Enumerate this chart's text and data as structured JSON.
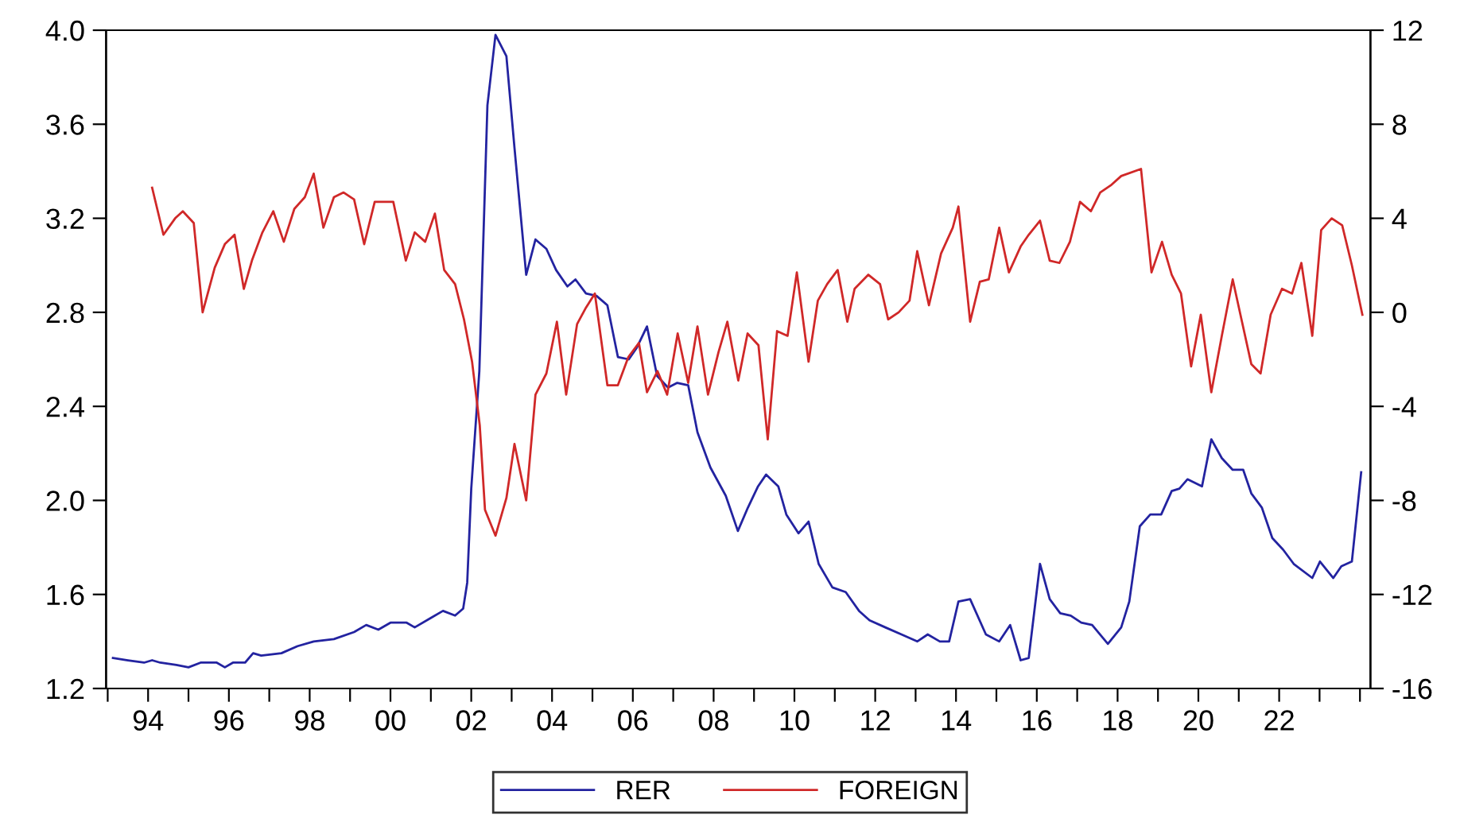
{
  "chart_data": {
    "type": "line",
    "series": [
      {
        "name": "RER",
        "color": "#2323a0",
        "x": [
          1993.13,
          1993.5,
          1993.9,
          1994.1,
          1994.3,
          1994.7,
          1995.0,
          1995.3,
          1995.7,
          1995.9,
          1996.1,
          1996.4,
          1996.6,
          1996.8,
          1997.3,
          1997.7,
          1998.1,
          1998.6,
          1999.1,
          1999.4,
          1999.7,
          2000.0,
          2000.4,
          2000.6,
          2001.0,
          2001.3,
          2001.6,
          2001.8,
          2001.9,
          2002.0,
          2002.2,
          2002.4,
          2002.6,
          2002.87,
          2003.07,
          2003.36,
          2003.59,
          2003.86,
          2004.1,
          2004.38,
          2004.58,
          2004.84,
          2005.1,
          2005.37,
          2005.63,
          2005.9,
          2006.1,
          2006.35,
          2006.6,
          2006.87,
          2007.1,
          2007.37,
          2007.6,
          2007.92,
          2008.3,
          2008.6,
          2008.85,
          2009.1,
          2009.3,
          2009.6,
          2009.8,
          2010.1,
          2010.35,
          2010.6,
          2010.94,
          2011.27,
          2011.6,
          2011.86,
          2012.25,
          2012.65,
          2013.04,
          2013.3,
          2013.6,
          2013.83,
          2014.06,
          2014.35,
          2014.74,
          2015.07,
          2015.34,
          2015.6,
          2015.8,
          2016.08,
          2016.32,
          2016.58,
          2016.84,
          2017.1,
          2017.37,
          2017.76,
          2018.09,
          2018.29,
          2018.55,
          2018.81,
          2019.08,
          2019.34,
          2019.53,
          2019.73,
          2020.09,
          2020.32,
          2020.58,
          2020.85,
          2021.11,
          2021.31,
          2021.57,
          2021.83,
          2022.1,
          2022.36,
          2022.82,
          2023.01,
          2023.34,
          2023.54,
          2023.8,
          2024.03
        ],
        "values": [
          1.33,
          1.32,
          1.31,
          1.32,
          1.31,
          1.3,
          1.29,
          1.31,
          1.31,
          1.29,
          1.31,
          1.31,
          1.35,
          1.34,
          1.35,
          1.38,
          1.4,
          1.41,
          1.44,
          1.47,
          1.45,
          1.48,
          1.48,
          1.46,
          1.5,
          1.53,
          1.51,
          1.54,
          1.65,
          2.05,
          2.55,
          3.68,
          3.98,
          3.89,
          3.5,
          2.96,
          3.11,
          3.07,
          2.98,
          2.91,
          2.94,
          2.88,
          2.87,
          2.83,
          2.61,
          2.6,
          2.65,
          2.74,
          2.53,
          2.48,
          2.5,
          2.49,
          2.29,
          2.14,
          2.02,
          1.87,
          1.97,
          2.06,
          2.11,
          2.06,
          1.94,
          1.86,
          1.91,
          1.73,
          1.63,
          1.61,
          1.53,
          1.49,
          1.46,
          1.43,
          1.4,
          1.43,
          1.4,
          1.4,
          1.57,
          1.58,
          1.43,
          1.4,
          1.47,
          1.32,
          1.33,
          1.73,
          1.58,
          1.52,
          1.51,
          1.48,
          1.47,
          1.39,
          1.46,
          1.57,
          1.89,
          1.94,
          1.94,
          2.04,
          2.05,
          2.09,
          2.06,
          2.26,
          2.18,
          2.13,
          2.13,
          2.03,
          1.97,
          1.84,
          1.79,
          1.73,
          1.67,
          1.74,
          1.67,
          1.72,
          1.74,
          2.12
        ]
      },
      {
        "name": "FOREIGN",
        "color": "#d02828",
        "axis": "y2",
        "x": [
          1994.1,
          1994.38,
          1994.67,
          1994.86,
          1995.13,
          1995.35,
          1995.65,
          1995.9,
          1996.14,
          1996.37,
          1996.57,
          1996.83,
          1997.1,
          1997.36,
          1997.62,
          1997.88,
          1998.1,
          1998.34,
          1998.6,
          1998.84,
          1999.1,
          1999.35,
          1999.61,
          1999.85,
          2000.07,
          2000.38,
          2000.6,
          2000.86,
          2001.1,
          2001.33,
          2001.6,
          2001.82,
          2002.02,
          2002.21,
          2002.34,
          2002.6,
          2002.87,
          2003.07,
          2003.36,
          2003.59,
          2003.86,
          2004.12,
          2004.35,
          2004.62,
          2004.84,
          2005.06,
          2005.37,
          2005.63,
          2005.89,
          2006.15,
          2006.35,
          2006.61,
          2006.85,
          2007.11,
          2007.37,
          2007.6,
          2007.86,
          2008.12,
          2008.34,
          2008.61,
          2008.84,
          2009.11,
          2009.34,
          2009.57,
          2009.83,
          2010.06,
          2010.35,
          2010.58,
          2010.81,
          2011.07,
          2011.31,
          2011.49,
          2011.83,
          2012.12,
          2012.32,
          2012.58,
          2012.85,
          2013.04,
          2013.33,
          2013.63,
          2013.92,
          2014.06,
          2014.35,
          2014.59,
          2014.81,
          2015.07,
          2015.31,
          2015.6,
          2015.8,
          2016.08,
          2016.32,
          2016.56,
          2016.82,
          2017.07,
          2017.34,
          2017.57,
          2017.83,
          2018.09,
          2018.58,
          2018.84,
          2019.1,
          2019.34,
          2019.57,
          2019.82,
          2020.06,
          2020.32,
          2020.58,
          2020.85,
          2021.08,
          2021.31,
          2021.54,
          2021.79,
          2022.07,
          2022.32,
          2022.55,
          2022.82,
          2023.04,
          2023.3,
          2023.56,
          2023.8,
          2024.06
        ],
        "values": [
          5.3,
          3.3,
          4.0,
          4.3,
          3.8,
          0.0,
          1.9,
          2.9,
          3.3,
          1.0,
          2.2,
          3.4,
          4.3,
          3.0,
          4.4,
          4.9,
          5.9,
          3.6,
          4.9,
          5.1,
          4.8,
          2.9,
          4.7,
          4.7,
          4.7,
          2.2,
          3.4,
          3.0,
          4.2,
          1.8,
          1.2,
          -0.3,
          -2.1,
          -4.8,
          -8.4,
          -9.5,
          -7.9,
          -5.6,
          -8.0,
          -3.5,
          -2.6,
          -0.4,
          -3.5,
          -0.5,
          0.2,
          0.8,
          -3.1,
          -3.1,
          -1.9,
          -1.3,
          -3.4,
          -2.5,
          -3.5,
          -0.9,
          -3.0,
          -0.6,
          -3.5,
          -1.7,
          -0.4,
          -2.9,
          -0.9,
          -1.4,
          -5.4,
          -0.8,
          -1.0,
          1.7,
          -2.1,
          0.5,
          1.2,
          1.8,
          -0.4,
          1.0,
          1.6,
          1.2,
          -0.3,
          0.0,
          0.5,
          2.6,
          0.3,
          2.5,
          3.6,
          4.5,
          -0.4,
          1.3,
          1.4,
          3.6,
          1.7,
          2.8,
          3.3,
          3.9,
          2.2,
          2.1,
          3.0,
          4.7,
          4.3,
          5.1,
          5.4,
          5.8,
          6.1,
          1.7,
          3.0,
          1.6,
          0.8,
          -2.3,
          -0.1,
          -3.4,
          -1.0,
          1.4,
          -0.4,
          -2.2,
          -2.6,
          -0.1,
          1.0,
          0.8,
          2.1,
          -1.0,
          3.5,
          4.0,
          3.7,
          2.0,
          -0.1
        ]
      }
    ],
    "xlim": [
      1992.96,
      2024.26
    ],
    "xticks": [
      {
        "value": 1993,
        "label": null
      },
      {
        "value": 1994,
        "label": "94"
      },
      {
        "value": 1995,
        "label": null
      },
      {
        "value": 1996,
        "label": "96"
      },
      {
        "value": 1997,
        "label": null
      },
      {
        "value": 1998,
        "label": "98"
      },
      {
        "value": 1999,
        "label": null
      },
      {
        "value": 2000,
        "label": "00"
      },
      {
        "value": 2001,
        "label": null
      },
      {
        "value": 2002,
        "label": "02"
      },
      {
        "value": 2003,
        "label": null
      },
      {
        "value": 2004,
        "label": "04"
      },
      {
        "value": 2005,
        "label": null
      },
      {
        "value": 2006,
        "label": "06"
      },
      {
        "value": 2007,
        "label": null
      },
      {
        "value": 2008,
        "label": "08"
      },
      {
        "value": 2009,
        "label": null
      },
      {
        "value": 2010,
        "label": "10"
      },
      {
        "value": 2011,
        "label": null
      },
      {
        "value": 2012,
        "label": "12"
      },
      {
        "value": 2013,
        "label": null
      },
      {
        "value": 2014,
        "label": "14"
      },
      {
        "value": 2015,
        "label": null
      },
      {
        "value": 2016,
        "label": "16"
      },
      {
        "value": 2017,
        "label": null
      },
      {
        "value": 2018,
        "label": "18"
      },
      {
        "value": 2019,
        "label": null
      },
      {
        "value": 2020,
        "label": "20"
      },
      {
        "value": 2021,
        "label": null
      },
      {
        "value": 2022,
        "label": "22"
      },
      {
        "value": 2023,
        "label": null
      },
      {
        "value": 2024,
        "label": null
      }
    ],
    "ylim": [
      1.2,
      4.0
    ],
    "yticks": [
      {
        "value": 1.2,
        "label": "1.2"
      },
      {
        "value": 1.6,
        "label": "1.6"
      },
      {
        "value": 2.0,
        "label": "2.0"
      },
      {
        "value": 2.4,
        "label": "2.4"
      },
      {
        "value": 2.8,
        "label": "2.8"
      },
      {
        "value": 3.2,
        "label": "3.2"
      },
      {
        "value": 3.6,
        "label": "3.6"
      },
      {
        "value": 4.0,
        "label": "4.0"
      }
    ],
    "y2lim": [
      -16,
      12
    ],
    "y2ticks": [
      -16,
      -12,
      -8,
      -4,
      0,
      4,
      8,
      12
    ],
    "grid": false,
    "legend": "bottom",
    "marker": "none",
    "line_style": "solid"
  }
}
